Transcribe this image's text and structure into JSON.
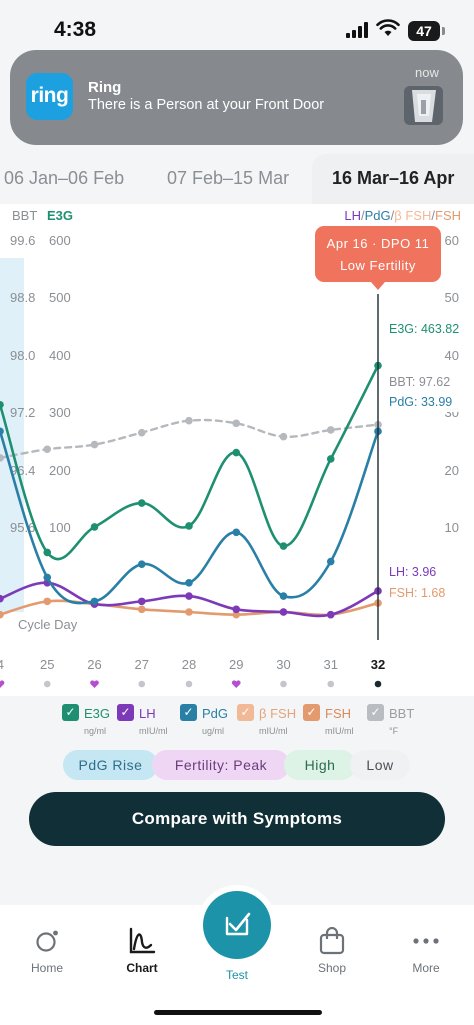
{
  "status_bar": {
    "time": "4:38",
    "battery": "47"
  },
  "notification": {
    "app_logo_text": "ring",
    "title": "Ring",
    "body": "There is a Person at your Front Door",
    "time": "now"
  },
  "range_tabs": [
    {
      "label": "06 Jan–06 Feb",
      "selected": false
    },
    {
      "label": "07 Feb–15 Mar",
      "selected": false
    },
    {
      "label": "16 Mar–16 Apr",
      "selected": true
    }
  ],
  "chart_data": {
    "type": "line",
    "left_axis_headers": [
      "BBT",
      "E3G"
    ],
    "right_axis_header": [
      "LH",
      "/",
      "PdG",
      "/",
      "β FSH",
      "/",
      "FSH"
    ],
    "bbt_ticks": [
      "99.6",
      "98.8",
      "98.0",
      "97.2",
      "96.4",
      "95.6"
    ],
    "e3g_ticks": [
      "600",
      "500",
      "400",
      "300",
      "200",
      "100"
    ],
    "right_ticks": [
      "60",
      "50",
      "40",
      "30",
      "20",
      "10"
    ],
    "x_label": "Cycle Day",
    "x": [
      24,
      25,
      26,
      27,
      28,
      29,
      30,
      31,
      32
    ],
    "x_tick_labels": [
      "4",
      "25",
      "26",
      "27",
      "28",
      "29",
      "30",
      "31",
      "32"
    ],
    "x_markers": [
      "heart",
      "dot",
      "heart",
      "dot",
      "dot",
      "heart",
      "dot",
      "dot",
      "dot-selected"
    ],
    "e3g_range": [
      0,
      700
    ],
    "left_range_bbt": [
      94.8,
      100.4
    ],
    "right_range": [
      0,
      70
    ],
    "series": [
      {
        "name": "E3G",
        "axis": "e3g",
        "color": "#1e9071",
        "x": [
          24,
          25,
          26,
          27,
          28,
          29,
          30,
          31,
          32
        ],
        "values": [
          390,
          112,
          160,
          205,
          162,
          300,
          124,
          288,
          463.82
        ]
      },
      {
        "name": "PdG",
        "axis": "right",
        "color": "#2a7fa6",
        "x": [
          24,
          25,
          26,
          27,
          28,
          29,
          30,
          31,
          32
        ],
        "values": [
          34,
          6.5,
          2,
          9,
          5.5,
          15,
          3,
          9.5,
          33.99
        ]
      },
      {
        "name": "LH",
        "axis": "right",
        "color": "#7c3ab8",
        "x": [
          24,
          25,
          26,
          27,
          28,
          29,
          30,
          31,
          32
        ],
        "values": [
          2.5,
          5.5,
          1.5,
          2,
          3,
          0.5,
          0,
          -0.5,
          3.96
        ]
      },
      {
        "name": "FSH",
        "axis": "right",
        "color": "#e29a6e",
        "x": [
          24,
          25,
          26,
          27,
          28,
          29,
          30,
          31,
          32
        ],
        "values": [
          -0.5,
          2,
          1.5,
          0.5,
          0,
          -0.5,
          0,
          -0.5,
          1.68
        ]
      },
      {
        "name": "BBT",
        "axis": "bbt",
        "color": "#b5b8bc",
        "dashed": true,
        "x": [
          24,
          25,
          26,
          27,
          28,
          29,
          30,
          31,
          32
        ],
        "values": [
          97.12,
          97.25,
          97.32,
          97.5,
          97.68,
          97.64,
          97.44,
          97.54,
          97.62
        ]
      }
    ],
    "selected": {
      "day": 32,
      "tooltip_date": "Apr 16 · DPO 11",
      "tooltip_status": "Low Fertility",
      "labels": [
        {
          "series": "E3G",
          "text": "E3G: 463.82"
        },
        {
          "series": "BBT",
          "text": "BBT: 97.62"
        },
        {
          "series": "PdG",
          "text": "PdG: 33.99"
        },
        {
          "series": "LH",
          "text": "LH: 3.96"
        },
        {
          "series": "FSH",
          "text": "FSH: 1.68"
        }
      ]
    },
    "grid": false
  },
  "legend": [
    {
      "name": "E3G",
      "unit": "ng/ml",
      "color": "#1e9071",
      "checked": true
    },
    {
      "name": "LH",
      "unit": "mIU/ml",
      "color": "#7c3ab8",
      "checked": true
    },
    {
      "name": "PdG",
      "unit": "ug/ml",
      "color": "#2a7fa6",
      "checked": true
    },
    {
      "name": "β FSH",
      "unit": "mIU/ml",
      "color": "#f2b997",
      "checked": true
    },
    {
      "name": "FSH",
      "unit": "mIU/ml",
      "color": "#e29a6e",
      "checked": true
    },
    {
      "name": "BBT",
      "unit": "°F",
      "color": "#b9bcc0",
      "checked": true
    }
  ],
  "phases": [
    {
      "label": "PdG Rise",
      "color": "#c5e6f3",
      "text_color": "#2f6f8a"
    },
    {
      "label": "Fertility: Peak",
      "color": "#f0d6f5",
      "text_color": "#6a3c7a"
    },
    {
      "label": "High",
      "color": "#dcf3e6",
      "text_color": "#2e6a4d"
    },
    {
      "label": "Low",
      "color": "#eff1f3",
      "text_color": "#4a4f55"
    }
  ],
  "compare_button": "Compare with Symptoms",
  "nav": [
    {
      "label": "Home",
      "icon": "home-ring-icon",
      "active": false
    },
    {
      "label": "Chart",
      "icon": "chart-icon",
      "active": true
    },
    {
      "label": "Test",
      "icon": "test-check-icon",
      "active": false
    },
    {
      "label": "Shop",
      "icon": "shopping-bag-icon",
      "active": false
    },
    {
      "label": "More",
      "icon": "more-dots-icon",
      "active": false
    }
  ]
}
